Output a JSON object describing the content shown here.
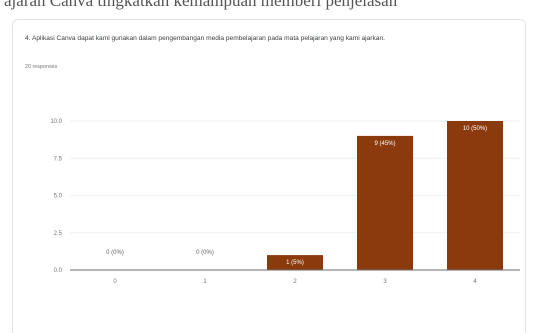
{
  "partial_header": "ajaran Canva tingkatkan kemampuan memberi penjelasan",
  "question": "4. Aplikasi Canva dapat kami gunakan dalam pengembangan media pembelajaran pada mata pelajaran yang kami ajarkan.",
  "responses": "20 responses",
  "colors": {
    "bar": "#8b3a0e",
    "axis": "#6b6b6b",
    "grid": "#ececec"
  },
  "chart_data": {
    "type": "bar",
    "categories": [
      "0",
      "1",
      "2",
      "3",
      "4"
    ],
    "values": [
      0,
      0,
      1,
      9,
      10
    ],
    "data_labels": [
      "0 (0%)",
      "0 (0%)",
      "1 (5%)",
      "9 (45%)",
      "10 (50%)"
    ],
    "y_ticks": [
      "0.0",
      "2.5",
      "5.0",
      "7.5",
      "10.0"
    ],
    "ylim": [
      0,
      10
    ],
    "title": "",
    "xlabel": "",
    "ylabel": "",
    "grid": true
  }
}
